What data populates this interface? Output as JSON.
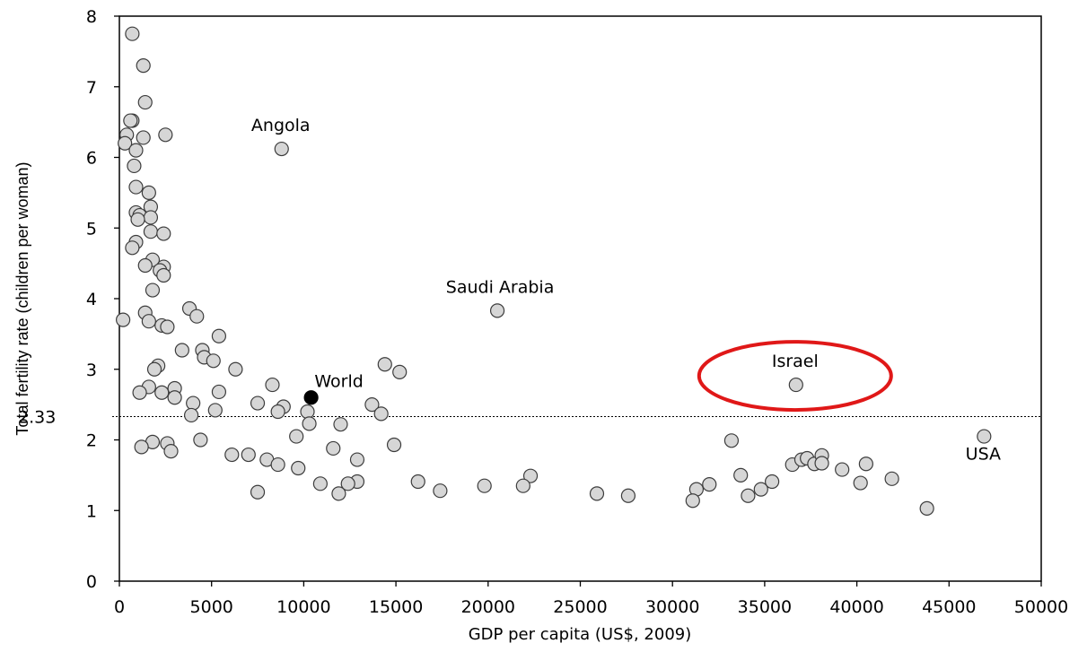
{
  "chart_data": {
    "type": "scatter",
    "title": "",
    "xlabel": "GDP per capita (US$, 2009)",
    "ylabel": "Total fertility rate (children per woman)",
    "xlim": [
      0,
      50000
    ],
    "ylim": [
      0,
      8
    ],
    "xticks": [
      0,
      5000,
      10000,
      15000,
      20000,
      25000,
      30000,
      35000,
      40000,
      45000,
      50000
    ],
    "yticks": [
      0,
      1,
      2,
      3,
      4,
      5,
      6,
      7,
      8
    ],
    "grid": false,
    "reference_line": {
      "y": 2.33,
      "label": "2.33",
      "style": "dotted"
    },
    "highlight": {
      "label": "Israel",
      "shape": "ellipse",
      "color": "#e01818"
    },
    "colors": {
      "point_fill": "#d6d6d6",
      "point_stroke": "#3c3c3c",
      "world_point": "#000000"
    },
    "annotations": [
      {
        "label": "Angola",
        "x": 8800,
        "y": 6.12
      },
      {
        "label": "Saudi Arabia",
        "x": 20500,
        "y": 3.83
      },
      {
        "label": "World",
        "x": 10400,
        "y": 2.6
      },
      {
        "label": "Israel",
        "x": 36700,
        "y": 2.78
      },
      {
        "label": "USA",
        "x": 46900,
        "y": 2.05
      }
    ],
    "series": [
      {
        "name": "",
        "points": [
          {
            "x": 700,
            "y": 7.75
          },
          {
            "x": 1300,
            "y": 7.3
          },
          {
            "x": 1400,
            "y": 6.78
          },
          {
            "x": 700,
            "y": 6.52
          },
          {
            "x": 600,
            "y": 6.52
          },
          {
            "x": 400,
            "y": 6.32
          },
          {
            "x": 1300,
            "y": 6.28
          },
          {
            "x": 300,
            "y": 6.2
          },
          {
            "x": 900,
            "y": 6.1
          },
          {
            "x": 2500,
            "y": 6.32
          },
          {
            "x": 8800,
            "y": 6.12
          },
          {
            "x": 800,
            "y": 5.88
          },
          {
            "x": 900,
            "y": 5.58
          },
          {
            "x": 1600,
            "y": 5.5
          },
          {
            "x": 1700,
            "y": 5.3
          },
          {
            "x": 900,
            "y": 5.22
          },
          {
            "x": 1100,
            "y": 5.18
          },
          {
            "x": 1700,
            "y": 5.15
          },
          {
            "x": 1000,
            "y": 5.12
          },
          {
            "x": 1700,
            "y": 4.95
          },
          {
            "x": 2400,
            "y": 4.92
          },
          {
            "x": 900,
            "y": 4.8
          },
          {
            "x": 700,
            "y": 4.72
          },
          {
            "x": 1800,
            "y": 4.55
          },
          {
            "x": 2400,
            "y": 4.45
          },
          {
            "x": 1400,
            "y": 4.47
          },
          {
            "x": 2200,
            "y": 4.4
          },
          {
            "x": 2400,
            "y": 4.33
          },
          {
            "x": 1800,
            "y": 4.12
          },
          {
            "x": 3800,
            "y": 3.86
          },
          {
            "x": 1400,
            "y": 3.8
          },
          {
            "x": 4200,
            "y": 3.75
          },
          {
            "x": 200,
            "y": 3.7
          },
          {
            "x": 1600,
            "y": 3.68
          },
          {
            "x": 2300,
            "y": 3.62
          },
          {
            "x": 2600,
            "y": 3.6
          },
          {
            "x": 5400,
            "y": 3.47
          },
          {
            "x": 20500,
            "y": 3.83
          },
          {
            "x": 3400,
            "y": 3.27
          },
          {
            "x": 4500,
            "y": 3.27
          },
          {
            "x": 4600,
            "y": 3.17
          },
          {
            "x": 5100,
            "y": 3.12
          },
          {
            "x": 2100,
            "y": 3.05
          },
          {
            "x": 1900,
            "y": 3.0
          },
          {
            "x": 6300,
            "y": 3.0
          },
          {
            "x": 14400,
            "y": 3.07
          },
          {
            "x": 15200,
            "y": 2.96
          },
          {
            "x": 1600,
            "y": 2.75
          },
          {
            "x": 3000,
            "y": 2.73
          },
          {
            "x": 8300,
            "y": 2.78
          },
          {
            "x": 1100,
            "y": 2.67
          },
          {
            "x": 2300,
            "y": 2.67
          },
          {
            "x": 5400,
            "y": 2.68
          },
          {
            "x": 3000,
            "y": 2.6
          },
          {
            "x": 4000,
            "y": 2.52
          },
          {
            "x": 7500,
            "y": 2.52
          },
          {
            "x": 8900,
            "y": 2.47
          },
          {
            "x": 13700,
            "y": 2.5
          },
          {
            "x": 8600,
            "y": 2.4
          },
          {
            "x": 10200,
            "y": 2.4
          },
          {
            "x": 5200,
            "y": 2.42
          },
          {
            "x": 14200,
            "y": 2.37
          },
          {
            "x": 3900,
            "y": 2.35
          },
          {
            "x": 10300,
            "y": 2.23
          },
          {
            "x": 12000,
            "y": 2.22
          },
          {
            "x": 9600,
            "y": 2.05
          },
          {
            "x": 4400,
            "y": 2.0
          },
          {
            "x": 33200,
            "y": 1.99
          },
          {
            "x": 1800,
            "y": 1.97
          },
          {
            "x": 2600,
            "y": 1.95
          },
          {
            "x": 14900,
            "y": 1.93
          },
          {
            "x": 1200,
            "y": 1.9
          },
          {
            "x": 11600,
            "y": 1.88
          },
          {
            "x": 2800,
            "y": 1.84
          },
          {
            "x": 6100,
            "y": 1.79
          },
          {
            "x": 7000,
            "y": 1.79
          },
          {
            "x": 8000,
            "y": 1.72
          },
          {
            "x": 12900,
            "y": 1.72
          },
          {
            "x": 8600,
            "y": 1.65
          },
          {
            "x": 9700,
            "y": 1.6
          },
          {
            "x": 36500,
            "y": 1.65
          },
          {
            "x": 37000,
            "y": 1.72
          },
          {
            "x": 37300,
            "y": 1.74
          },
          {
            "x": 37700,
            "y": 1.66
          },
          {
            "x": 38100,
            "y": 1.78
          },
          {
            "x": 38100,
            "y": 1.67
          },
          {
            "x": 39200,
            "y": 1.58
          },
          {
            "x": 40500,
            "y": 1.66
          },
          {
            "x": 22300,
            "y": 1.49
          },
          {
            "x": 33700,
            "y": 1.5
          },
          {
            "x": 41900,
            "y": 1.45
          },
          {
            "x": 16200,
            "y": 1.41
          },
          {
            "x": 12900,
            "y": 1.41
          },
          {
            "x": 12400,
            "y": 1.38
          },
          {
            "x": 10900,
            "y": 1.38
          },
          {
            "x": 32000,
            "y": 1.37
          },
          {
            "x": 35400,
            "y": 1.41
          },
          {
            "x": 40200,
            "y": 1.39
          },
          {
            "x": 19800,
            "y": 1.35
          },
          {
            "x": 21900,
            "y": 1.35
          },
          {
            "x": 34800,
            "y": 1.3
          },
          {
            "x": 31300,
            "y": 1.3
          },
          {
            "x": 17400,
            "y": 1.28
          },
          {
            "x": 7500,
            "y": 1.26
          },
          {
            "x": 11900,
            "y": 1.24
          },
          {
            "x": 25900,
            "y": 1.24
          },
          {
            "x": 27600,
            "y": 1.21
          },
          {
            "x": 34100,
            "y": 1.21
          },
          {
            "x": 31100,
            "y": 1.14
          },
          {
            "x": 43800,
            "y": 1.03
          },
          {
            "x": 36700,
            "y": 2.78
          },
          {
            "x": 46900,
            "y": 2.05
          }
        ]
      }
    ],
    "world": {
      "x": 10400,
      "y": 2.6
    }
  }
}
